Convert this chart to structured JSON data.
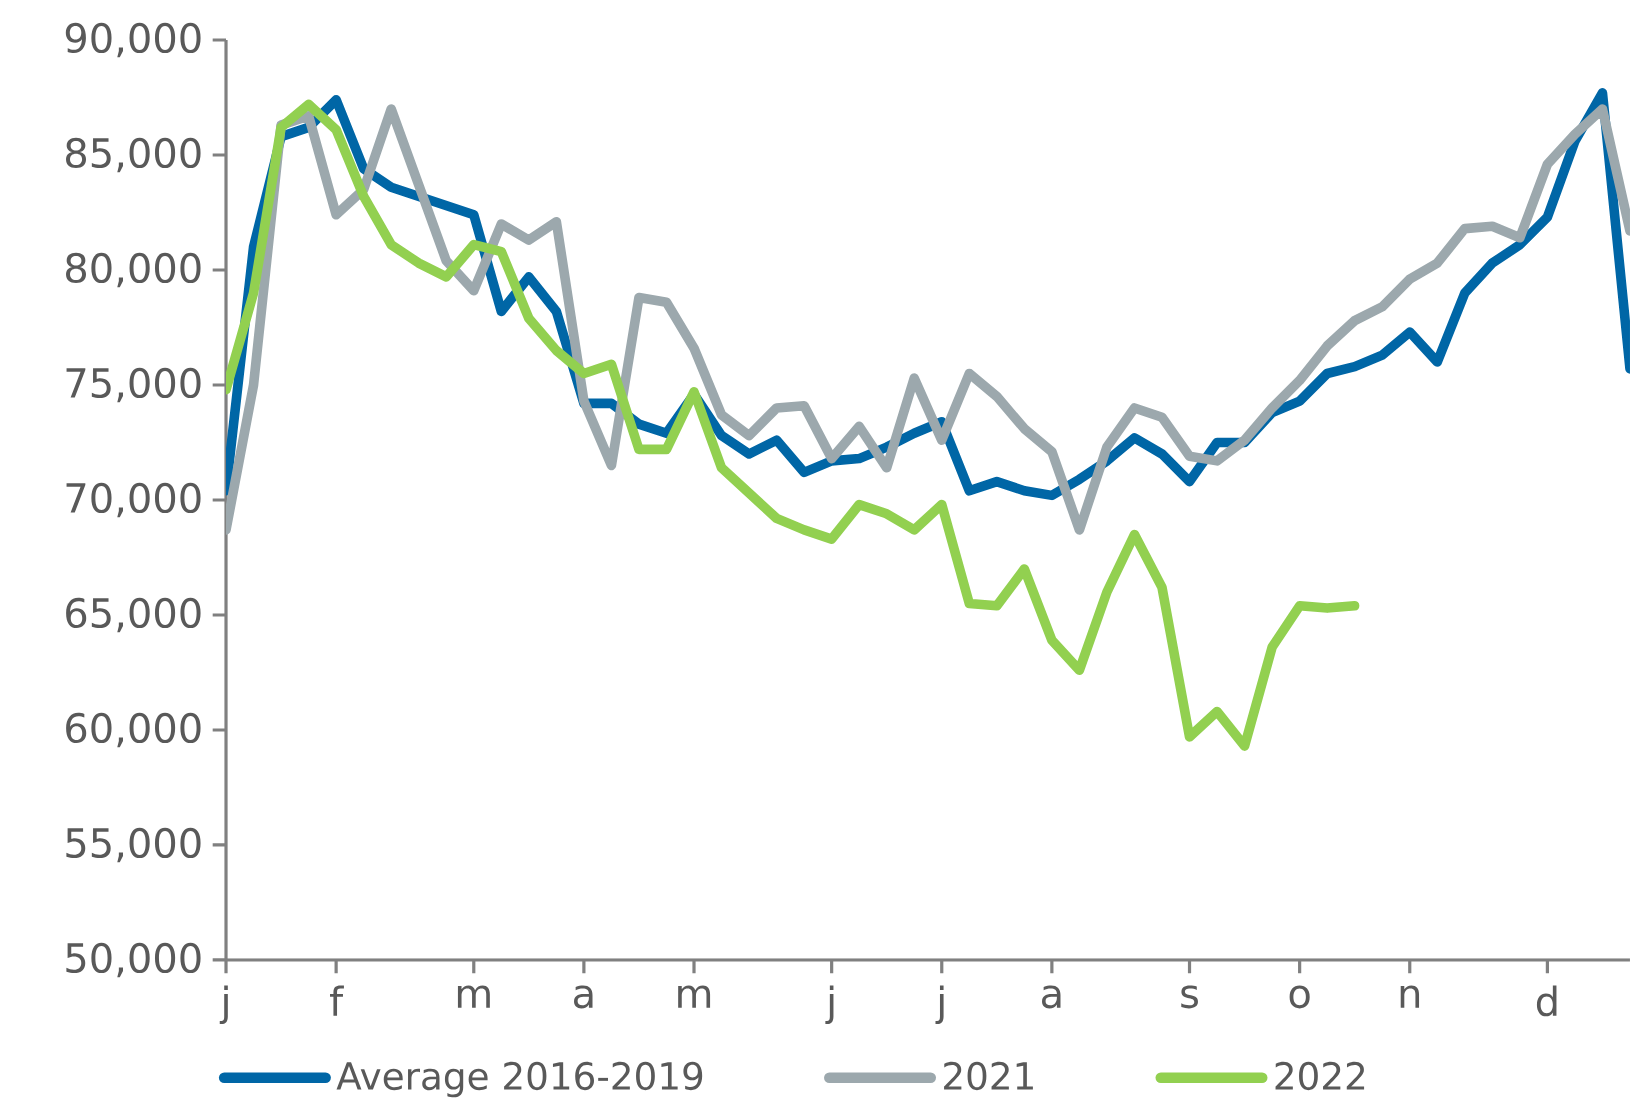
{
  "chart_data": {
    "type": "line",
    "categories": [
      "j",
      null,
      null,
      null,
      "f",
      null,
      null,
      null,
      null,
      "m",
      null,
      null,
      null,
      "a",
      null,
      null,
      null,
      "m",
      null,
      null,
      null,
      null,
      "j",
      null,
      null,
      null,
      "j",
      null,
      null,
      null,
      "a",
      null,
      null,
      null,
      null,
      "s",
      null,
      null,
      null,
      "o",
      null,
      null,
      null,
      "n",
      null,
      null,
      null,
      null,
      "d",
      null,
      null,
      null
    ],
    "ylim": [
      50000,
      90000
    ],
    "yticks": [
      {
        "value": 50000,
        "label": "50,000"
      },
      {
        "value": 55000,
        "label": "55,000"
      },
      {
        "value": 60000,
        "label": "60,000"
      },
      {
        "value": 65000,
        "label": "65,000"
      },
      {
        "value": 70000,
        "label": "70,000"
      },
      {
        "value": 75000,
        "label": "75,000"
      },
      {
        "value": 80000,
        "label": "80,000"
      },
      {
        "value": 85000,
        "label": "85,000"
      },
      {
        "value": 90000,
        "label": "90,000"
      }
    ],
    "legend": "bottom",
    "series": [
      {
        "name": "Average 2016-2019",
        "color": "#0066a6",
        "values": [
          70400,
          81000,
          85800,
          86200,
          87400,
          84400,
          83600,
          83200,
          82800,
          82400,
          78200,
          79700,
          78200,
          74200,
          74200,
          73300,
          72900,
          74600,
          72800,
          72000,
          72600,
          71200,
          71700,
          71800,
          72300,
          72900,
          73400,
          70400,
          70800,
          70400,
          70200,
          70900,
          71700,
          72700,
          72000,
          70800,
          72500,
          72500,
          73800,
          74300,
          75500,
          75800,
          76300,
          77300,
          76000,
          79000,
          80300,
          81100,
          82300,
          85600,
          87700,
          75700
        ]
      },
      {
        "name": "2021",
        "color": "#9ca8ad",
        "values": [
          68700,
          75000,
          86300,
          86700,
          82400,
          83500,
          87000,
          83700,
          80400,
          79100,
          82000,
          81300,
          82100,
          74300,
          71500,
          78800,
          78600,
          76600,
          73700,
          72800,
          74000,
          74100,
          71800,
          73200,
          71400,
          75300,
          72600,
          75500,
          74500,
          73100,
          72100,
          68700,
          72300,
          74000,
          73600,
          71900,
          71700,
          72600,
          74000,
          75200,
          76700,
          77800,
          78400,
          79600,
          80300,
          81800,
          81900,
          81400,
          84600,
          85900,
          87000,
          81700
        ]
      },
      {
        "name": "2022",
        "color": "#92d050",
        "values": [
          74800,
          79000,
          86200,
          87200,
          86100,
          83200,
          81100,
          80300,
          79700,
          81100,
          80800,
          77900,
          76500,
          75500,
          75900,
          72200,
          72200,
          74700,
          71400,
          70300,
          69200,
          68700,
          68300,
          69800,
          69400,
          68700,
          69800,
          65500,
          65400,
          67000,
          63900,
          62600,
          66000,
          68500,
          66200,
          59700,
          60800,
          59300,
          63600,
          65400,
          65300,
          65400,
          null,
          null,
          null,
          null,
          null,
          null,
          null,
          null,
          null,
          null
        ]
      }
    ]
  }
}
